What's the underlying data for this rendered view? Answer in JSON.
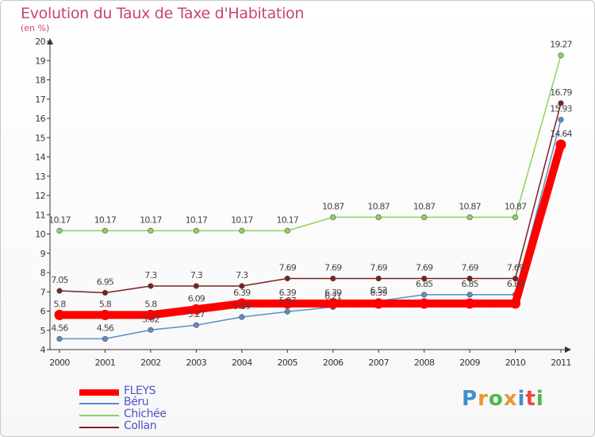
{
  "header": {
    "title": "Evolution du Taux de Taxe d'Habitation",
    "subtitle": "(en %)"
  },
  "logo": {
    "text": "Proxiti",
    "colors": [
      "#3d8fd4",
      "#e8962e",
      "#4ab84a",
      "#e8962e",
      "#3d8fd4",
      "#e84a3d",
      "#4ab84a"
    ]
  },
  "chart_data": {
    "type": "line",
    "title": "Evolution du Taux de Taxe d'Habitation",
    "subtitle": "(en %)",
    "x": [
      "2000",
      "2001",
      "2002",
      "2003",
      "2004",
      "2005",
      "2006",
      "2007",
      "2008",
      "2009",
      "2010",
      "2011"
    ],
    "ylim": [
      4,
      20
    ],
    "yticks": [
      "4",
      "5",
      "6",
      "7",
      "8",
      "9",
      "10",
      "11",
      "12",
      "13",
      "14",
      "15",
      "16",
      "17",
      "18",
      "19",
      "20"
    ],
    "grid": false,
    "legend_position": "bottom-left",
    "series": [
      {
        "name": "FLEYS",
        "color": "#ff0000",
        "values": [
          5.8,
          5.8,
          5.8,
          6.09,
          6.39,
          6.39,
          6.39,
          6.39,
          6.39,
          6.39,
          6.39,
          14.64
        ],
        "labels": [
          "5.8",
          "5.8",
          "5.8",
          "6.09",
          "6.39",
          "6.39",
          "6.39",
          "6.39",
          "",
          "",
          "",
          "14.64"
        ]
      },
      {
        "name": "Béru",
        "color": "#5b8ec4",
        "values": [
          4.56,
          4.56,
          5.02,
          5.27,
          5.69,
          5.97,
          6.21,
          6.52,
          6.85,
          6.85,
          6.85,
          15.93
        ],
        "labels": [
          "4.56",
          "4.56",
          "5.02",
          "5.27",
          "5.69",
          "5.97",
          "6.21",
          "6.52",
          "6.85",
          "6.85",
          "6.85",
          "15.93"
        ]
      },
      {
        "name": "Chichée",
        "color": "#8ed35a",
        "values": [
          10.17,
          10.17,
          10.17,
          10.17,
          10.17,
          10.17,
          10.87,
          10.87,
          10.87,
          10.87,
          10.87,
          19.27
        ],
        "labels": [
          "10.17",
          "10.17",
          "10.17",
          "10.17",
          "10.17",
          "10.17",
          "10.87",
          "10.87",
          "10.87",
          "10.87",
          "10.87",
          "19.27"
        ]
      },
      {
        "name": "Collan",
        "color": "#7a2222",
        "values": [
          7.05,
          6.95,
          7.3,
          7.3,
          7.3,
          7.69,
          7.69,
          7.69,
          7.69,
          7.69,
          7.69,
          16.79
        ],
        "labels": [
          "7.05",
          "6.95",
          "7.3",
          "7.3",
          "7.3",
          "7.69",
          "7.69",
          "7.69",
          "7.69",
          "7.69",
          "7.69",
          "16.79"
        ]
      }
    ]
  }
}
